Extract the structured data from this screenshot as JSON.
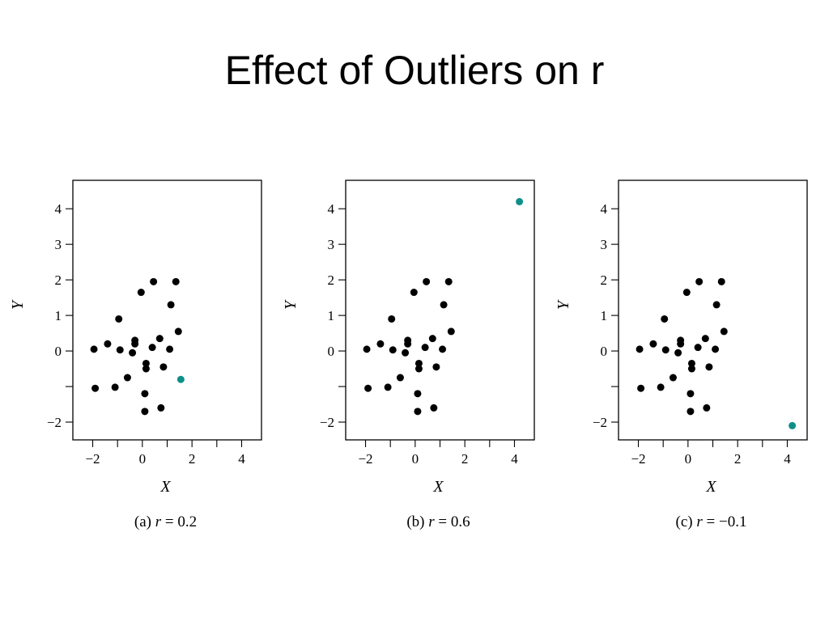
{
  "slide": {
    "title": "Effect of Outliers on r"
  },
  "colors": {
    "points": "#000000",
    "outlier": "#0e8f8a",
    "frame": "#000000"
  },
  "chart_data": [
    {
      "type": "scatter",
      "caption_prefix": "(a) ",
      "caption_var": "r",
      "caption_value": " = 0.2",
      "xlabel": "X",
      "ylabel": "Y",
      "xlim": [
        -2.8,
        4.8
      ],
      "ylim": [
        -2.5,
        4.8
      ],
      "xticks": [
        -2,
        -1,
        0,
        1,
        2,
        3,
        4
      ],
      "xtick_labels": [
        "−2",
        "",
        "0",
        "",
        "2",
        "",
        "4"
      ],
      "yticks": [
        -2,
        -1,
        0,
        1,
        2,
        3,
        4
      ],
      "ytick_labels": [
        "−2",
        "",
        "0",
        "1",
        "2",
        "3",
        "4"
      ],
      "series": [
        {
          "role": "base",
          "x": [
            -1.95,
            -1.4,
            -0.95,
            -0.9,
            -1.1,
            -1.9,
            -0.6,
            -0.4,
            -0.3,
            -0.3,
            -0.05,
            0.15,
            0.15,
            0.4,
            0.45,
            0.7,
            0.85,
            1.1,
            1.15,
            1.35,
            1.45,
            0.1,
            0.75,
            0.1
          ],
          "y": [
            0.05,
            0.2,
            0.9,
            0.03,
            -1.02,
            -1.05,
            -0.75,
            -0.05,
            0.2,
            0.3,
            1.65,
            -0.35,
            -0.5,
            0.1,
            1.95,
            0.35,
            -0.45,
            0.05,
            1.3,
            1.95,
            0.55,
            -1.2,
            -1.6,
            -1.7
          ]
        },
        {
          "role": "outlier",
          "x": [
            1.55
          ],
          "y": [
            -0.8
          ]
        }
      ]
    },
    {
      "type": "scatter",
      "caption_prefix": "(b) ",
      "caption_var": "r",
      "caption_value": " = 0.6",
      "xlabel": "X",
      "ylabel": "Y",
      "xlim": [
        -2.8,
        4.8
      ],
      "ylim": [
        -2.5,
        4.8
      ],
      "xticks": [
        -2,
        -1,
        0,
        1,
        2,
        3,
        4
      ],
      "xtick_labels": [
        "−2",
        "",
        "0",
        "",
        "2",
        "",
        "4"
      ],
      "yticks": [
        -2,
        -1,
        0,
        1,
        2,
        3,
        4
      ],
      "ytick_labels": [
        "−2",
        "",
        "0",
        "1",
        "2",
        "3",
        "4"
      ],
      "series": [
        {
          "role": "base",
          "x": [
            -1.95,
            -1.4,
            -0.95,
            -0.9,
            -1.1,
            -1.9,
            -0.6,
            -0.4,
            -0.3,
            -0.3,
            -0.05,
            0.15,
            0.15,
            0.4,
            0.45,
            0.7,
            0.85,
            1.1,
            1.15,
            1.35,
            1.45,
            0.1,
            0.75,
            0.1
          ],
          "y": [
            0.05,
            0.2,
            0.9,
            0.03,
            -1.02,
            -1.05,
            -0.75,
            -0.05,
            0.2,
            0.3,
            1.65,
            -0.35,
            -0.5,
            0.1,
            1.95,
            0.35,
            -0.45,
            0.05,
            1.3,
            1.95,
            0.55,
            -1.2,
            -1.6,
            -1.7
          ]
        },
        {
          "role": "outlier",
          "x": [
            4.2
          ],
          "y": [
            4.2
          ]
        }
      ]
    },
    {
      "type": "scatter",
      "caption_prefix": "(c) ",
      "caption_var": "r",
      "caption_value": " = −0.1",
      "xlabel": "X",
      "ylabel": "Y",
      "xlim": [
        -2.8,
        4.8
      ],
      "ylim": [
        -2.5,
        4.8
      ],
      "xticks": [
        -2,
        -1,
        0,
        1,
        2,
        3,
        4
      ],
      "xtick_labels": [
        "−2",
        "",
        "0",
        "",
        "2",
        "",
        "4"
      ],
      "yticks": [
        -2,
        -1,
        0,
        1,
        2,
        3,
        4
      ],
      "ytick_labels": [
        "−2",
        "",
        "0",
        "1",
        "2",
        "3",
        "4"
      ],
      "series": [
        {
          "role": "base",
          "x": [
            -1.95,
            -1.4,
            -0.95,
            -0.9,
            -1.1,
            -1.9,
            -0.6,
            -0.4,
            -0.3,
            -0.3,
            -0.05,
            0.15,
            0.15,
            0.4,
            0.45,
            0.7,
            0.85,
            1.1,
            1.15,
            1.35,
            1.45,
            0.1,
            0.75,
            0.1
          ],
          "y": [
            0.05,
            0.2,
            0.9,
            0.03,
            -1.02,
            -1.05,
            -0.75,
            -0.05,
            0.2,
            0.3,
            1.65,
            -0.35,
            -0.5,
            0.1,
            1.95,
            0.35,
            -0.45,
            0.05,
            1.3,
            1.95,
            0.55,
            -1.2,
            -1.6,
            -1.7
          ]
        },
        {
          "role": "outlier",
          "x": [
            4.2
          ],
          "y": [
            -2.1
          ]
        }
      ]
    }
  ]
}
